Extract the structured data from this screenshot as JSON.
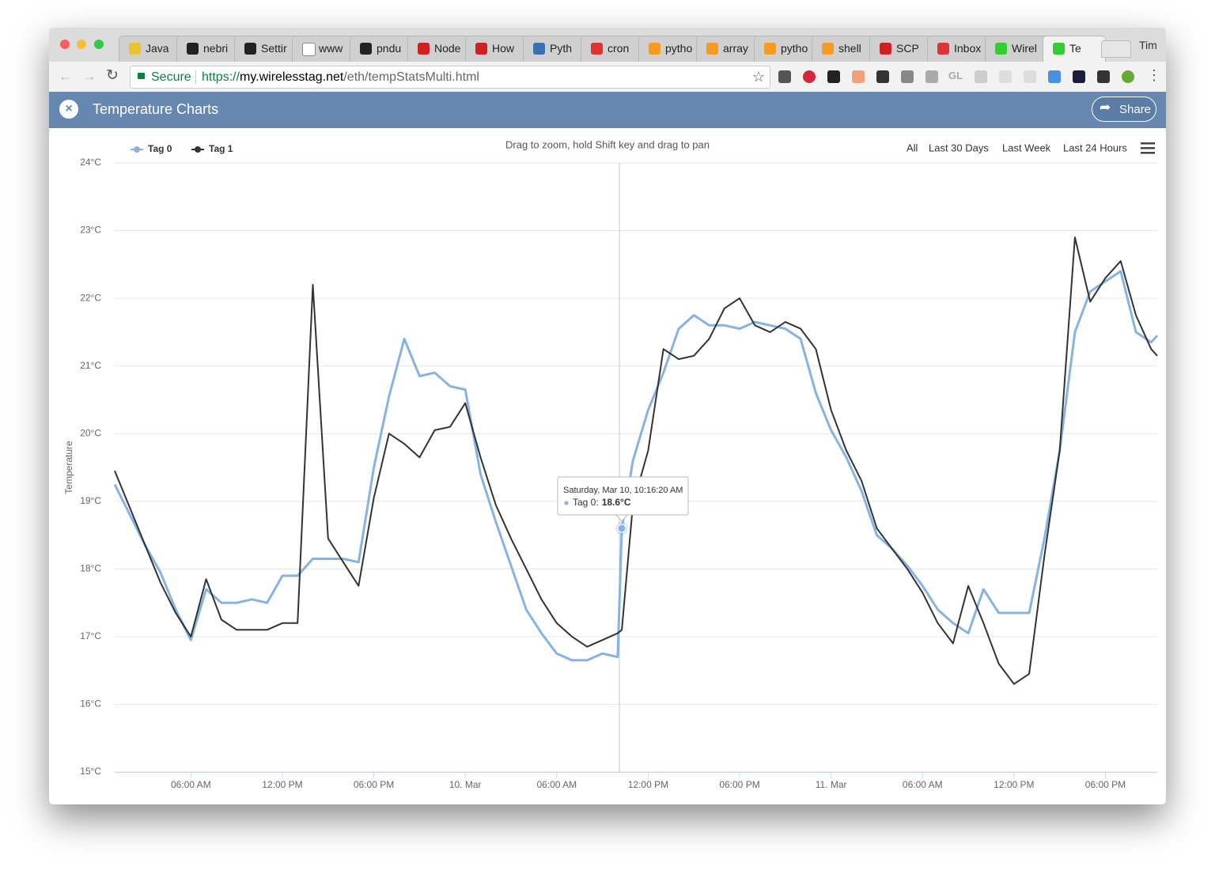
{
  "browser": {
    "tabs": [
      "Java",
      "nebri",
      "Settir",
      "www",
      "pndu",
      "Node",
      "How",
      "Pyth",
      "cron",
      "pytho",
      "array",
      "pytho",
      "shell",
      "SCP",
      "Inbox",
      "Wirel",
      "Te"
    ],
    "user": "Tim",
    "secure": "Secure",
    "url_scheme": "https://",
    "url_host": "my.wirelesstag.net",
    "url_path": "/eth/tempStatsMulti.html",
    "ext_label": "GL"
  },
  "header": {
    "title": "Temperature Charts",
    "share": "Share"
  },
  "chart_data": {
    "type": "line",
    "subtitle": "Drag to zoom, hold Shift key and drag to pan",
    "range_buttons": [
      "All",
      "Last 30 Days",
      "Last Week",
      "Last 24 Hours"
    ],
    "y_label": "Temperature",
    "legend": "top-left",
    "grid": true,
    "ylim": [
      15,
      24
    ],
    "yticks": [
      {
        "value": 15,
        "label": "15°C"
      },
      {
        "value": 16,
        "label": "16°C"
      },
      {
        "value": 17,
        "label": "17°C"
      },
      {
        "value": 18,
        "label": "18°C"
      },
      {
        "value": 19,
        "label": "19°C"
      },
      {
        "value": 20,
        "label": "20°C"
      },
      {
        "value": 21,
        "label": "21°C"
      },
      {
        "value": 22,
        "label": "22°C"
      },
      {
        "value": 23,
        "label": "23°C"
      },
      {
        "value": 24,
        "label": "24°C"
      }
    ],
    "xlim": [
      1,
      69.4
    ],
    "xticks": [
      {
        "value": 6,
        "label": "06:00 AM"
      },
      {
        "value": 12,
        "label": "12:00 PM"
      },
      {
        "value": 18,
        "label": "06:00 PM"
      },
      {
        "value": 24,
        "label": "10. Mar"
      },
      {
        "value": 30,
        "label": "06:00 AM"
      },
      {
        "value": 36,
        "label": "12:00 PM"
      },
      {
        "value": 42,
        "label": "06:00 PM"
      },
      {
        "value": 48,
        "label": "11. Mar"
      },
      {
        "value": 54,
        "label": "06:00 AM"
      },
      {
        "value": 60,
        "label": "12:00 PM"
      },
      {
        "value": 66,
        "label": "06:00 PM"
      }
    ],
    "x": [
      1,
      2,
      3,
      4,
      5,
      6,
      7,
      8,
      9,
      10,
      11,
      12,
      13,
      14,
      15,
      16,
      17,
      18,
      19,
      20,
      21,
      22,
      23,
      24,
      25,
      26,
      27,
      28,
      29,
      30,
      31,
      32,
      33,
      34,
      34.27,
      35,
      36,
      37,
      38,
      39,
      40,
      41,
      42,
      43,
      44,
      45,
      46,
      47,
      48,
      49,
      50,
      51,
      52,
      53,
      54,
      55,
      56,
      57,
      58,
      59,
      60,
      61,
      62,
      63,
      64,
      65,
      66,
      67,
      68,
      69,
      69.4
    ],
    "series": [
      {
        "name": "Tag 0",
        "color": "#86b3e3",
        "values": [
          19.25,
          18.8,
          18.35,
          17.95,
          17.4,
          16.95,
          17.7,
          17.5,
          17.5,
          17.55,
          17.5,
          17.9,
          17.9,
          18.15,
          18.15,
          18.15,
          18.1,
          19.5,
          20.55,
          21.4,
          20.85,
          20.9,
          20.7,
          20.65,
          19.4,
          18.7,
          18.05,
          17.4,
          17.05,
          16.75,
          16.65,
          16.65,
          16.75,
          16.7,
          18.6,
          19.6,
          20.35,
          20.9,
          21.55,
          21.75,
          21.6,
          21.6,
          21.55,
          21.65,
          21.6,
          21.55,
          21.4,
          20.6,
          20.05,
          19.65,
          19.15,
          18.5,
          18.3,
          18.05,
          17.75,
          17.4,
          17.2,
          17.05,
          17.7,
          17.35,
          17.35,
          17.35,
          18.45,
          19.75,
          21.5,
          22.1,
          22.25,
          22.4,
          21.5,
          21.35,
          21.45
        ]
      },
      {
        "name": "Tag 1",
        "color": "#333333",
        "values": [
          19.45,
          18.9,
          18.35,
          17.8,
          17.35,
          17.0,
          17.85,
          17.25,
          17.1,
          17.1,
          17.1,
          17.2,
          17.2,
          22.2,
          18.45,
          18.1,
          17.75,
          19.05,
          20.0,
          19.85,
          19.65,
          20.05,
          20.1,
          20.45,
          19.65,
          18.95,
          18.45,
          18.0,
          17.55,
          17.2,
          17.0,
          16.85,
          16.95,
          17.05,
          17.1,
          18.95,
          19.75,
          21.25,
          21.1,
          21.15,
          21.4,
          21.85,
          22.0,
          21.6,
          21.5,
          21.65,
          21.55,
          21.25,
          20.35,
          19.75,
          19.3,
          18.6,
          18.3,
          18.0,
          17.65,
          17.2,
          16.9,
          17.75,
          17.2,
          16.6,
          16.3,
          16.45,
          18.2,
          19.75,
          22.9,
          21.95,
          22.3,
          22.55,
          21.75,
          21.25,
          21.15
        ]
      }
    ],
    "tooltip": {
      "title": "Saturday, Mar 10, 10:16:20 AM",
      "label": "Tag 0:",
      "value": 18.6,
      "value_label": "18.6°C",
      "x": 34.27
    }
  }
}
